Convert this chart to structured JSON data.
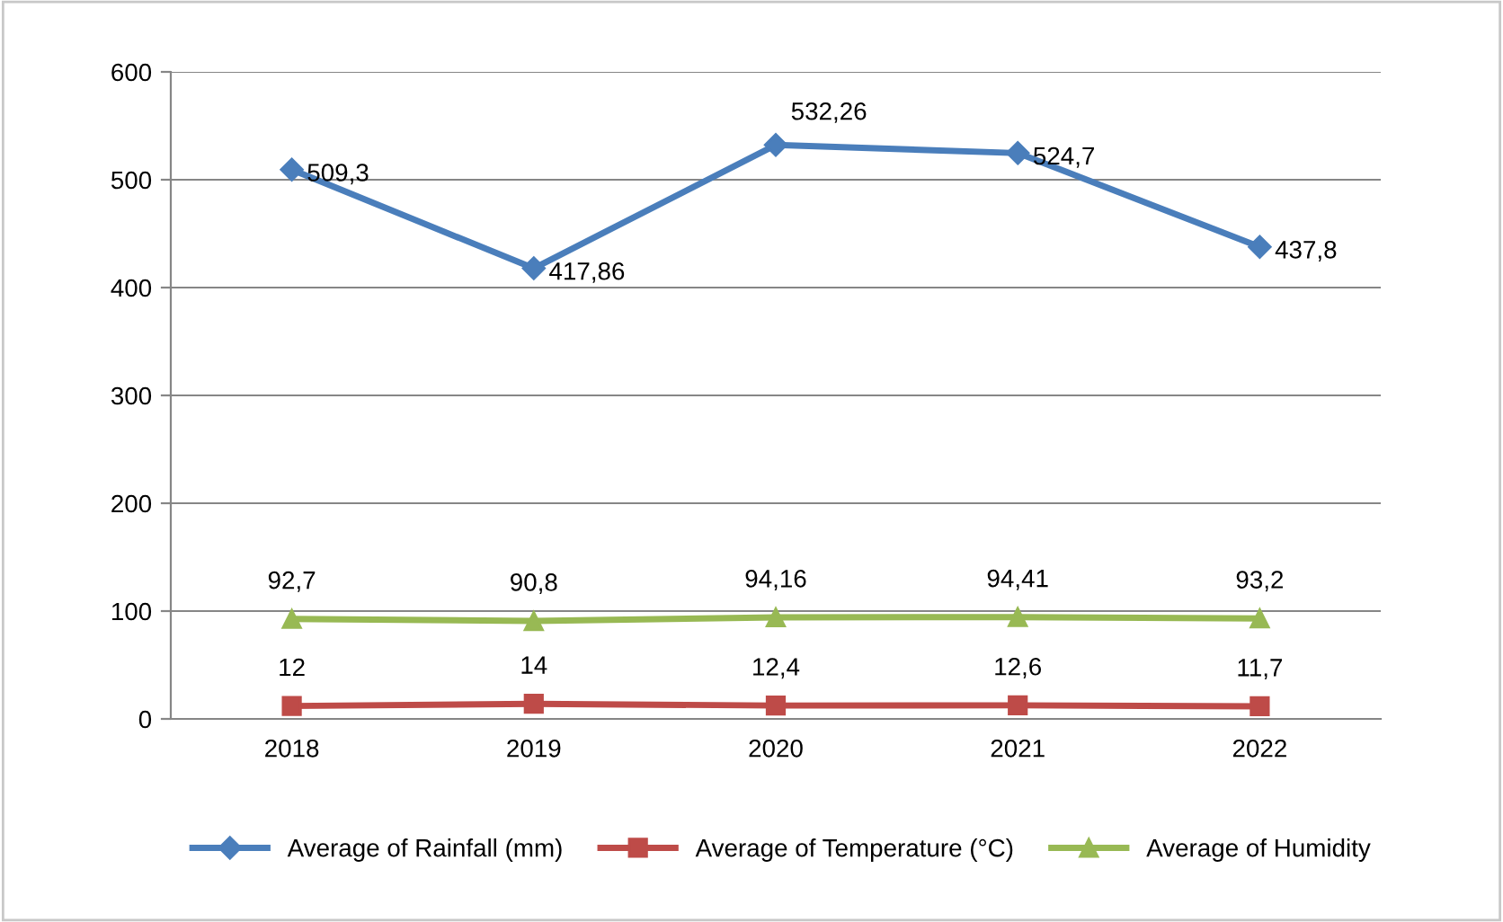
{
  "chart_data": {
    "type": "line",
    "categories": [
      "2018",
      "2019",
      "2020",
      "2021",
      "2022"
    ],
    "series": [
      {
        "name": "Average of Rainfall (mm)",
        "color": "#4a7ebb",
        "marker": "diamond",
        "values": [
          509.3,
          417.86,
          532.26,
          524.7,
          437.8
        ],
        "value_labels": [
          "509,3",
          "417,86",
          "532,26",
          "524,7",
          "437,8"
        ]
      },
      {
        "name": "Average of Temperature (°C)",
        "color": "#be4b48",
        "marker": "square",
        "values": [
          12,
          14,
          12.4,
          12.6,
          11.7
        ],
        "value_labels": [
          "12",
          "14",
          "12,4",
          "12,6",
          "11,7"
        ]
      },
      {
        "name": "Average of Humidity",
        "color": "#98b954",
        "marker": "triangle",
        "values": [
          92.7,
          90.8,
          94.16,
          94.41,
          93.2
        ],
        "value_labels": [
          "92,7",
          "90,8",
          "94,16",
          "94,41",
          "93,2"
        ]
      }
    ],
    "ylim": [
      0,
      600
    ],
    "yticks": [
      0,
      100,
      200,
      300,
      400,
      500,
      600
    ],
    "grid": "y",
    "legend": "bottom",
    "line_style": "solid"
  }
}
